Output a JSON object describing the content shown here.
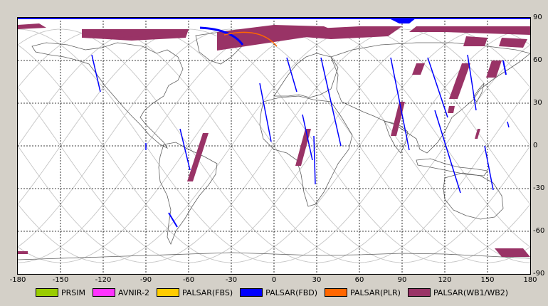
{
  "map": {
    "x_ticks": [
      "-180",
      "-150",
      "-120",
      "-90",
      "-60",
      "-30",
      "0",
      "30",
      "60",
      "90",
      "120",
      "150",
      "180"
    ],
    "y_ticks": [
      "90",
      "60",
      "30",
      "0",
      "-30",
      "-60",
      "-90"
    ],
    "x_range": [
      -180,
      180
    ],
    "y_range": [
      -90,
      90
    ],
    "grid": "dashed"
  },
  "legend": [
    {
      "label": "PRSIM",
      "color": "#99cc00"
    },
    {
      "label": "AVNIR-2",
      "color": "#ff33ff"
    },
    {
      "label": "PALSAR(FBS)",
      "color": "#ffcc00"
    },
    {
      "label": "PALSAR(FBD)",
      "color": "#0000ff"
    },
    {
      "label": "PALSAR(PLR)",
      "color": "#ff6600"
    },
    {
      "label": "PALSAR(WB1/WB2)",
      "color": "#993366"
    }
  ],
  "colors": {
    "orbit_track": "#c8c8c8",
    "coastline": "#606060",
    "wb_swath": "#993366",
    "fbd_swath": "#0000ff",
    "plr_swath": "#ff6600"
  }
}
